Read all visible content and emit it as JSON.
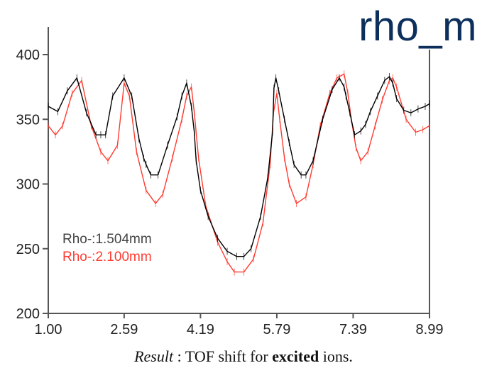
{
  "corner_title": "rho_m",
  "caption": {
    "label": "Result",
    "sep": " : ",
    "pre": "TOF shift for ",
    "strong": "excited",
    "post": " ions."
  },
  "colors": {
    "series1": "#000000",
    "series2": "#ff3b30",
    "axis": "#555555"
  },
  "chart_data": {
    "type": "line",
    "title": "",
    "xlabel": "",
    "ylabel": "",
    "xlim": [
      1.0,
      8.99
    ],
    "ylim": [
      200,
      420
    ],
    "xticks": [
      "1.00",
      "2.59",
      "4.19",
      "5.79",
      "7.39",
      "8.99"
    ],
    "yticks": [
      "200",
      "250",
      "300",
      "350",
      "400"
    ],
    "legend_position": "lower-left",
    "series": [
      {
        "name": "Rho-:1.504mm",
        "x": [
          1.0,
          1.2,
          1.4,
          1.6,
          1.8,
          2.0,
          2.1,
          2.2,
          2.35,
          2.59,
          2.75,
          2.9,
          3.0,
          3.05,
          3.15,
          3.3,
          3.5,
          3.7,
          3.8,
          3.9,
          4.0,
          4.06,
          4.1,
          4.19,
          4.35,
          4.55,
          4.75,
          4.95,
          5.1,
          5.25,
          5.45,
          5.6,
          5.7,
          5.73,
          5.77,
          5.83,
          5.95,
          6.05,
          6.15,
          6.3,
          6.4,
          6.55,
          6.75,
          6.95,
          7.1,
          7.2,
          7.24,
          7.32,
          7.42,
          7.55,
          7.65,
          7.75,
          7.9,
          8.05,
          8.15,
          8.22,
          8.3,
          8.45,
          8.6,
          8.75,
          8.9,
          8.99
        ],
        "y": [
          360,
          356,
          372,
          382,
          355,
          338,
          338,
          338,
          368,
          382,
          368,
          335,
          320,
          315,
          307,
          307,
          330,
          352,
          368,
          378,
          360,
          340,
          318,
          295,
          275,
          258,
          248,
          244,
          244,
          250,
          275,
          305,
          340,
          374,
          382,
          372,
          350,
          332,
          315,
          307,
          307,
          318,
          350,
          373,
          382,
          375,
          368,
          355,
          338,
          341,
          346,
          356,
          368,
          380,
          383,
          378,
          366,
          357,
          355,
          358,
          360,
          362
        ]
      },
      {
        "name": "Rho-:2.100mm",
        "x": [
          1.0,
          1.15,
          1.3,
          1.5,
          1.7,
          1.9,
          2.1,
          2.25,
          2.45,
          2.59,
          2.7,
          2.85,
          3.05,
          3.25,
          3.4,
          3.6,
          3.8,
          3.9,
          4.0,
          4.06,
          4.15,
          4.3,
          4.55,
          4.75,
          4.9,
          5.1,
          5.3,
          5.5,
          5.65,
          5.72,
          5.79,
          5.85,
          5.95,
          6.05,
          6.2,
          6.4,
          6.55,
          6.7,
          6.9,
          7.05,
          7.2,
          7.28,
          7.35,
          7.45,
          7.55,
          7.7,
          7.85,
          8.0,
          8.15,
          8.22,
          8.3,
          8.5,
          8.7,
          8.85,
          8.99
        ],
        "y": [
          345,
          338,
          345,
          370,
          380,
          345,
          325,
          318,
          330,
          378,
          368,
          325,
          295,
          285,
          292,
          320,
          350,
          368,
          375,
          355,
          320,
          283,
          255,
          240,
          232,
          232,
          242,
          270,
          315,
          355,
          370,
          350,
          320,
          300,
          285,
          290,
          315,
          345,
          370,
          382,
          385,
          370,
          350,
          328,
          318,
          325,
          345,
          365,
          380,
          382,
          375,
          350,
          340,
          342,
          345
        ]
      }
    ]
  }
}
